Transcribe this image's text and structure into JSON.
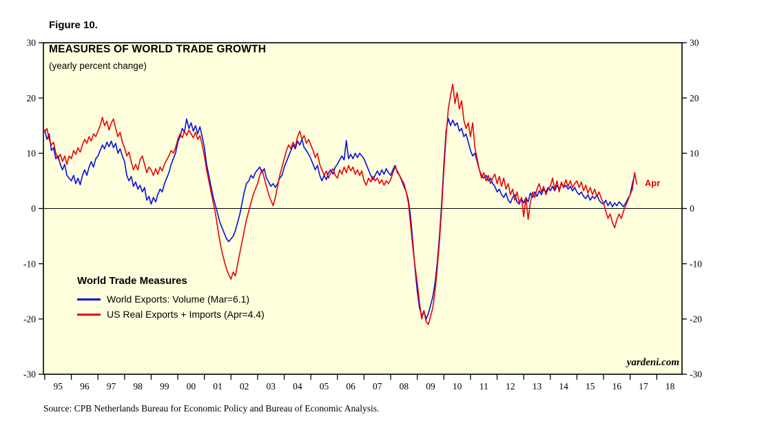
{
  "figure_label": "Figure 10.",
  "source": "Source: CPB Netherlands Bureau for Economic Policy and Bureau of Economic Analysis.",
  "watermark": "yardeni.com",
  "legend": {
    "title": "World Trade Measures"
  },
  "chart_data": {
    "type": "line",
    "title": "MEASURES OF WORLD TRADE GROWTH",
    "subtitle": "(yearly percent change)",
    "plot_bg": "#FFFFDE",
    "x_range": [
      1994.95,
      2018.95
    ],
    "y_range": [
      -30,
      30
    ],
    "y_ticks": [
      30,
      20,
      10,
      0,
      -10,
      -20,
      -30
    ],
    "x_tick_years": [
      1995,
      1996,
      1997,
      1998,
      1999,
      2000,
      2001,
      2002,
      2003,
      2004,
      2005,
      2006,
      2007,
      2008,
      2009,
      2010,
      2011,
      2012,
      2013,
      2014,
      2015,
      2016,
      2017,
      2018
    ],
    "x_tick_labels": [
      "95",
      "96",
      "97",
      "98",
      "99",
      "00",
      "01",
      "02",
      "03",
      "04",
      "05",
      "06",
      "07",
      "08",
      "09",
      "10",
      "11",
      "12",
      "13",
      "14",
      "15",
      "16",
      "17",
      "18"
    ],
    "zero_line": true,
    "annotations": [
      {
        "text": "Apr",
        "x_year": 2017.55,
        "y_value": 4.6,
        "color": "#E80000"
      }
    ],
    "series": [
      {
        "name": "World Exports: Volume (Mar=6.1)",
        "color": "#0010DC",
        "start_year": 1995.0,
        "frequency": "monthly",
        "values": [
          14.2,
          12.5,
          13.5,
          10.5,
          11,
          9,
          9.5,
          8,
          7,
          8,
          6,
          5.5,
          5,
          6,
          4.5,
          5.5,
          4.3,
          6,
          7,
          6,
          7.5,
          8.5,
          7.5,
          9,
          9.5,
          10.5,
          11.5,
          10.8,
          12,
          11.2,
          12.2,
          11,
          11.8,
          10,
          10.8,
          9.5,
          8.5,
          6,
          5,
          5.8,
          4,
          4.8,
          3.5,
          4.2,
          3,
          3.8,
          1.5,
          2.2,
          0.8,
          2,
          1.2,
          2.5,
          3.5,
          3,
          4.5,
          5.5,
          6.5,
          8,
          9,
          10,
          12,
          13,
          14.5,
          13.8,
          16.2,
          14.5,
          15.5,
          14,
          15,
          13.5,
          14.8,
          13,
          11,
          8,
          6,
          4,
          2,
          0.5,
          -1,
          -2.5,
          -3.5,
          -4.5,
          -5.5,
          -6,
          -5.5,
          -5,
          -4,
          -2.5,
          -1,
          1,
          3,
          4.5,
          5,
          6,
          5.5,
          6.5,
          7,
          7.5,
          6.5,
          7.2,
          5.5,
          4.8,
          4,
          4.5,
          3.8,
          4.5,
          5.5,
          6,
          7.5,
          8.5,
          9.5,
          10.5,
          11.5,
          10.8,
          12.2,
          11.5,
          12.5,
          11,
          10.5,
          9.8,
          9,
          8,
          7,
          7.8,
          6,
          5,
          6,
          5.2,
          6.5,
          7,
          6.2,
          7.5,
          8,
          8.8,
          9.5,
          8.8,
          12.3,
          9,
          9.8,
          9,
          10,
          9.2,
          10,
          9.5,
          9,
          8,
          7,
          6,
          5.2,
          6,
          6.8,
          6,
          7,
          6.2,
          7.2,
          6.5,
          6,
          7,
          7.8,
          6.5,
          6,
          5,
          4,
          3,
          1.5,
          -1.5,
          -6,
          -11,
          -15,
          -18,
          -19.5,
          -18.5,
          -20,
          -19,
          -17.5,
          -16,
          -13.5,
          -10,
          -5,
          1,
          8,
          14,
          16.3,
          15,
          16,
          15,
          15.5,
          14,
          14.5,
          13,
          13.5,
          12,
          10.5,
          9.5,
          10,
          8.5,
          7,
          6,
          5.5,
          6,
          5,
          5.5,
          4.5,
          4,
          3,
          3.5,
          2.5,
          2,
          2.8,
          1.5,
          1,
          2,
          2.5,
          1.2,
          0.8,
          1.8,
          1,
          2,
          1.2,
          2.8,
          2,
          3,
          2.2,
          3.2,
          2.5,
          3.5,
          3,
          3.8,
          3.2,
          4,
          3.2,
          4.2,
          3.5,
          4.5,
          3.8,
          4.2,
          3.5,
          4,
          3.2,
          3.8,
          3,
          2.5,
          3,
          2.2,
          1.8,
          2.5,
          1.5,
          2.2,
          1.8,
          2.5,
          1.5,
          1,
          0.8,
          1.5,
          0.5,
          1.2,
          0.3,
          1,
          0.5,
          1.2,
          0.8,
          0.3,
          1,
          1.8,
          2.5,
          4.5,
          6.1
        ]
      },
      {
        "name": "US Real Exports + Imports (Apr=4.4)",
        "color": "#E80000",
        "start_year": 1995.0,
        "frequency": "monthly",
        "values": [
          13.8,
          14.5,
          12.5,
          11.5,
          12,
          10,
          9,
          9.8,
          8.5,
          9.5,
          8,
          9.5,
          9,
          10.5,
          9.8,
          11,
          10.2,
          11.5,
          12.5,
          11.8,
          13,
          12.2,
          13.5,
          13,
          14,
          15,
          16.5,
          15,
          15.8,
          14.2,
          15.5,
          16.2,
          14.5,
          13,
          13.8,
          12,
          11,
          9.5,
          10.2,
          8.5,
          7,
          8,
          7,
          8.8,
          9.5,
          8,
          6.5,
          7.5,
          7,
          6,
          7.2,
          6.2,
          7.5,
          6.8,
          8,
          8.8,
          9.5,
          10.5,
          10,
          11,
          12.5,
          13.5,
          12.8,
          14,
          13.2,
          14.2,
          13.5,
          12.8,
          13.8,
          12.5,
          13.2,
          11.5,
          9.5,
          7,
          5,
          3,
          1,
          -1,
          -3.5,
          -6,
          -8,
          -9.5,
          -11,
          -12,
          -12.8,
          -11.5,
          -12.2,
          -10,
          -8,
          -6,
          -4,
          -2,
          -0.5,
          1,
          2.5,
          3.5,
          4.5,
          6,
          7,
          5.5,
          4,
          2.5,
          1.5,
          0.5,
          2,
          4,
          6,
          7.5,
          9,
          10.5,
          11.5,
          10.8,
          12,
          11.2,
          13,
          14,
          12.5,
          13.2,
          11.8,
          12.5,
          11.5,
          10.5,
          9.2,
          10,
          8,
          7,
          6,
          6.8,
          5.5,
          6.5,
          7.2,
          6,
          5.5,
          7,
          6.2,
          7.5,
          6.5,
          7.8,
          6.8,
          7.5,
          6.2,
          7,
          6,
          6.8,
          5,
          4.2,
          5.5,
          4.8,
          5.8,
          5,
          5.5,
          4.5,
          5.2,
          4.2,
          5,
          4.5,
          5.2,
          6.5,
          7.5,
          6.8,
          6,
          5.2,
          4.5,
          3,
          1,
          -3,
          -7,
          -10.5,
          -13.5,
          -17,
          -20,
          -18.5,
          -20.5,
          -21,
          -19.5,
          -18,
          -15,
          -11,
          -6,
          0,
          7,
          13,
          18,
          20.5,
          22.5,
          19,
          21,
          18,
          19.5,
          16,
          14.5,
          15.5,
          13,
          15.5,
          11,
          9,
          7,
          5.5,
          6.5,
          5,
          6,
          4.5,
          5.5,
          6.2,
          4.5,
          5.8,
          4,
          5.5,
          3.5,
          4.5,
          2.5,
          3.5,
          1.5,
          3,
          1,
          2,
          -1.5,
          2,
          -2,
          1,
          3,
          2,
          3.5,
          4.5,
          3,
          4,
          2.5,
          3.5,
          4,
          5.5,
          3.5,
          5,
          3,
          4.8,
          3.8,
          5.2,
          4,
          5,
          3.8,
          4.5,
          5,
          3.8,
          4.8,
          3.2,
          4.2,
          2.8,
          3.8,
          2.5,
          3.5,
          2.2,
          3,
          1.8,
          1,
          -0.5,
          -1.8,
          -1,
          -2.5,
          -3.5,
          -2,
          -1,
          -1.8,
          -0.5,
          0.5,
          1.5,
          2.5,
          3.5,
          6.5,
          4.4
        ]
      }
    ]
  }
}
